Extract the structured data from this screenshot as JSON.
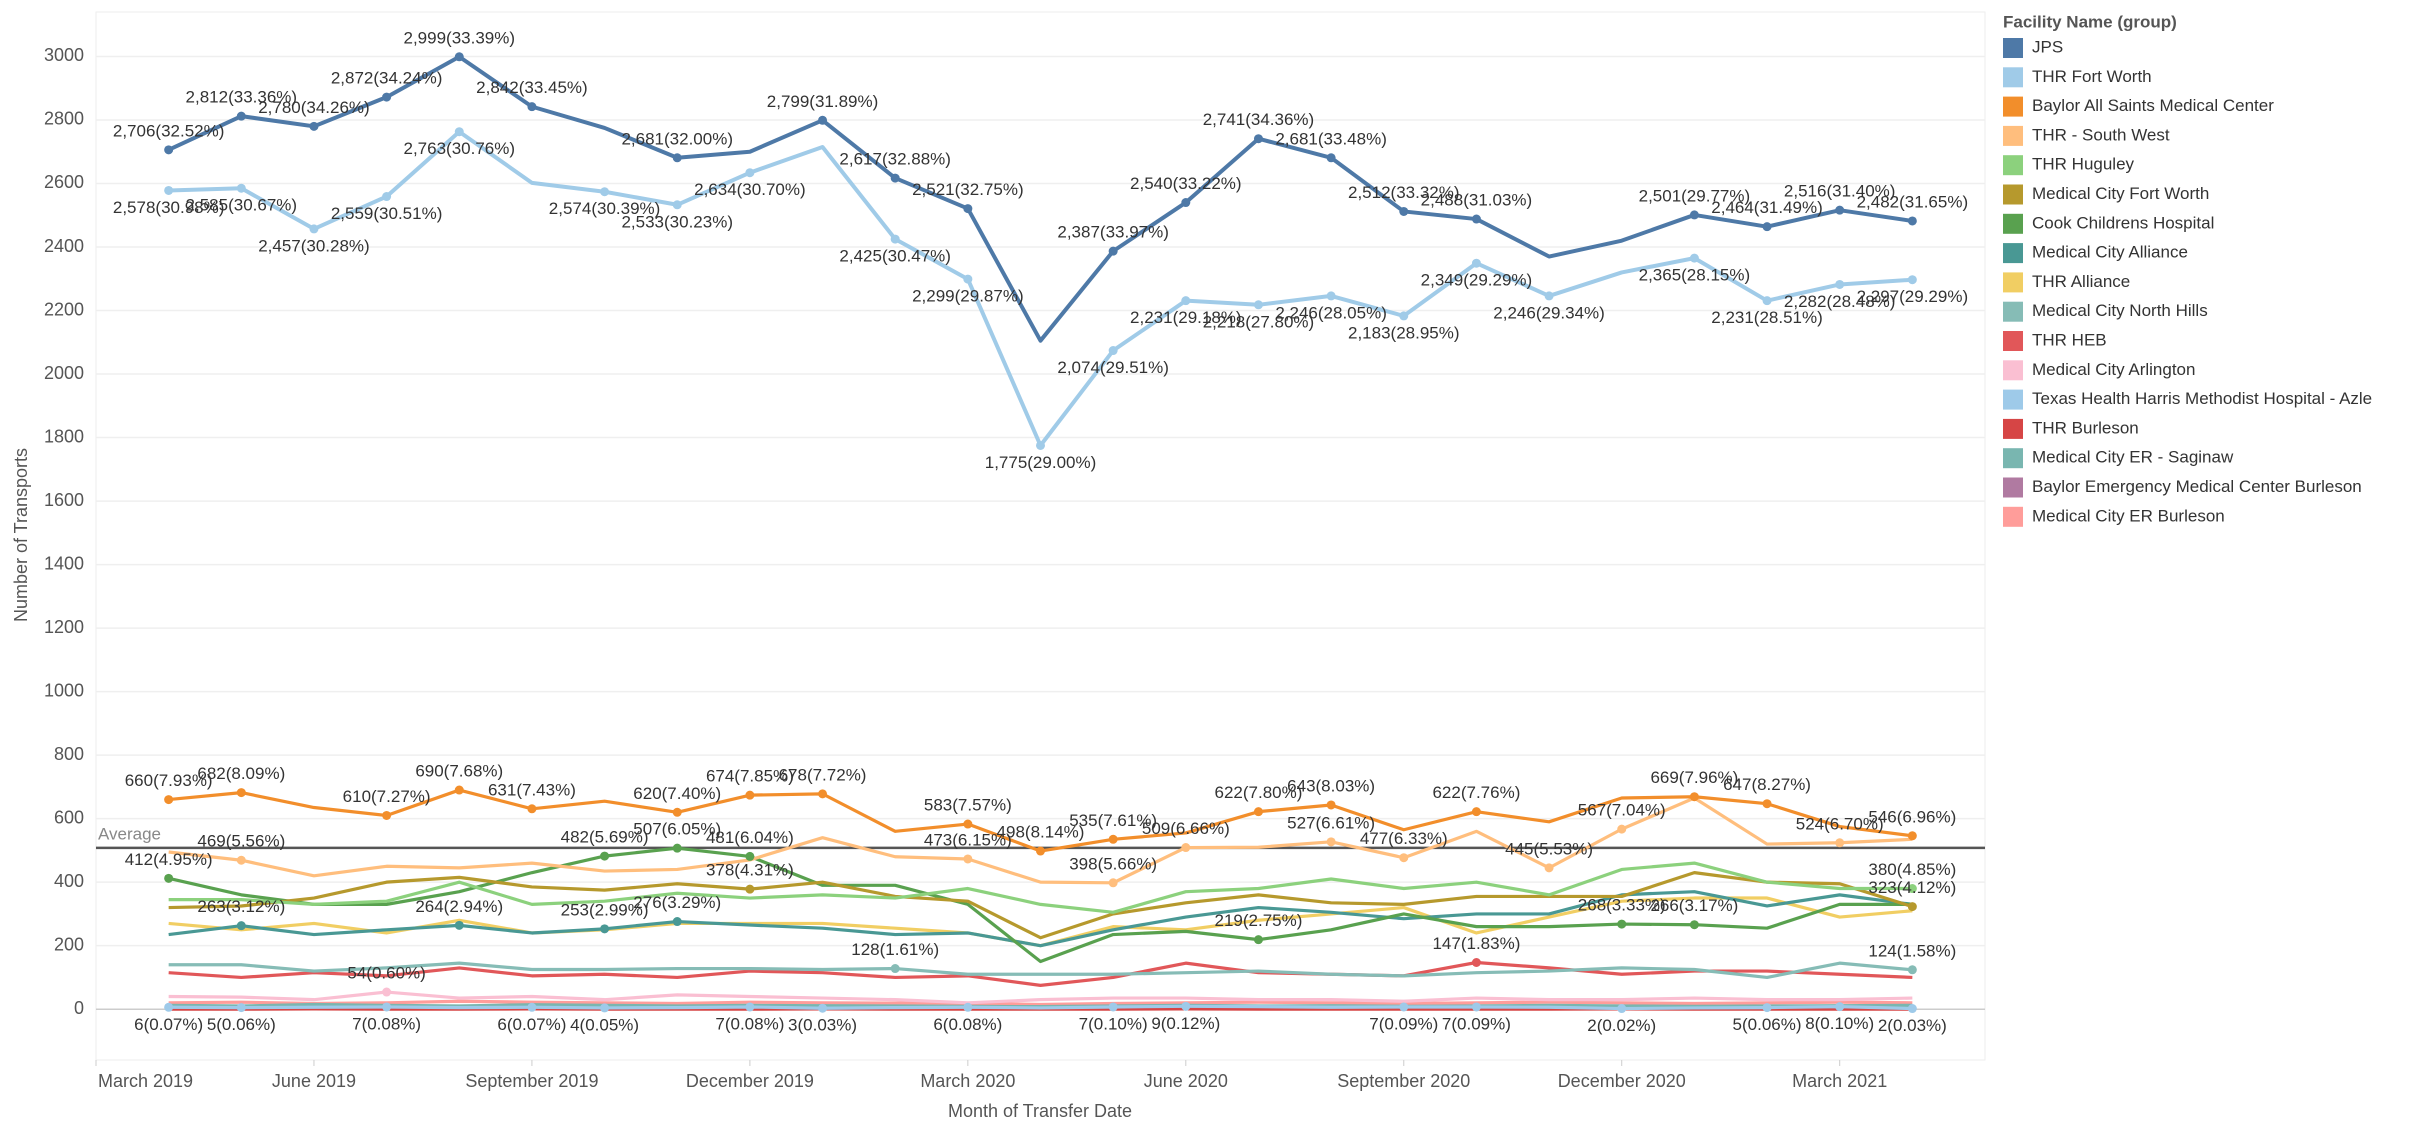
{
  "chart_data": {
    "type": "line",
    "x_label": "Month of Transfer Date",
    "y_label": "Number of Transports",
    "legend_title": "Facility Name (group)",
    "legend": "right",
    "grid": true,
    "x": [
      "2019-04",
      "2019-05",
      "2019-06",
      "2019-07",
      "2019-08",
      "2019-09",
      "2019-10",
      "2019-11",
      "2019-12",
      "2020-01",
      "2020-02",
      "2020-03",
      "2020-04",
      "2020-05",
      "2020-06",
      "2020-07",
      "2020-08",
      "2020-09",
      "2020-10",
      "2020-11",
      "2020-12",
      "2021-01",
      "2021-02",
      "2021-03",
      "2021-04"
    ],
    "xlim": [
      "2019-03",
      "2021-05"
    ],
    "xticks": [
      {
        "value": "2019-03",
        "label": "March 2019"
      },
      {
        "value": "2019-06",
        "label": "June 2019"
      },
      {
        "value": "2019-09",
        "label": "September 2019"
      },
      {
        "value": "2019-12",
        "label": "December 2019"
      },
      {
        "value": "2020-03",
        "label": "March 2020"
      },
      {
        "value": "2020-06",
        "label": "June 2020"
      },
      {
        "value": "2020-09",
        "label": "September 2020"
      },
      {
        "value": "2020-12",
        "label": "December 2020"
      },
      {
        "value": "2021-03",
        "label": "March 2021"
      }
    ],
    "ylim": [
      -160,
      3140
    ],
    "yticks": [
      0,
      200,
      400,
      600,
      800,
      1000,
      1200,
      1400,
      1600,
      1800,
      2000,
      2200,
      2400,
      2600,
      2800,
      3000
    ],
    "reference_line": {
      "label": "Average",
      "value": 508
    },
    "series": [
      {
        "name": "JPS",
        "color": "#4e79a7",
        "values": [
          2706,
          2812,
          2780,
          2872,
          2999,
          2842,
          2775,
          2681,
          2700,
          2799,
          2617,
          2521,
          2105,
          2387,
          2540,
          2741,
          2681,
          2512,
          2488,
          2370,
          2420,
          2501,
          2464,
          2516,
          2482
        ],
        "value_labels": [
          "2,706(32.52%)",
          "2,812(33.36%)",
          "2,780(34.26%)",
          "2,872(34.24%)",
          "2,999(33.39%)",
          "2,842(33.45%)",
          null,
          "2,681(32.00%)",
          null,
          "2,799(31.89%)",
          "2,617(32.88%)",
          "2,521(32.75%)",
          null,
          "2,387(33.97%)",
          "2,540(33.22%)",
          "2,741(34.36%)",
          "2,681(33.48%)",
          "2,512(33.32%)",
          "2,488(31.03%)",
          null,
          null,
          "2,501(29.77%)",
          "2,464(31.49%)",
          "2,516(31.40%)",
          "2,482(31.65%)"
        ]
      },
      {
        "name": "THR Fort Worth",
        "color": "#a0cbe8",
        "values": [
          2578,
          2585,
          2457,
          2559,
          2763,
          2602,
          2574,
          2533,
          2634,
          2715,
          2425,
          2299,
          1775,
          2074,
          2231,
          2218,
          2246,
          2183,
          2349,
          2246,
          2320,
          2365,
          2231,
          2282,
          2297
        ],
        "value_labels": [
          "2,578(30.98%)",
          "2,585(30.67%)",
          "2,457(30.28%)",
          "2,559(30.51%)",
          "2,763(30.76%)",
          null,
          "2,574(30.39%)",
          "2,533(30.23%)",
          "2,634(30.70%)",
          null,
          "2,425(30.47%)",
          "2,299(29.87%)",
          "1,775(29.00%)",
          "2,074(29.51%)",
          "2,231(29.18%)",
          "2,218(27.80%)",
          "2,246(28.05%)",
          "2,183(28.95%)",
          "2,349(29.29%)",
          "2,246(29.34%)",
          null,
          "2,365(28.15%)",
          "2,231(28.51%)",
          "2,282(28.48%)",
          "2,297(29.29%)"
        ]
      },
      {
        "name": "Baylor All Saints Medical Center",
        "color": "#f28e2b",
        "values": [
          660,
          682,
          635,
          610,
          690,
          631,
          655,
          620,
          674,
          678,
          560,
          583,
          498,
          535,
          555,
          622,
          643,
          565,
          622,
          590,
          665,
          669,
          647,
          575,
          546
        ],
        "value_labels": [
          "660(7.93%)",
          "682(8.09%)",
          null,
          "610(7.27%)",
          "690(7.68%)",
          "631(7.43%)",
          null,
          "620(7.40%)",
          "674(7.85%)",
          "678(7.72%)",
          null,
          "583(7.57%)",
          "498(8.14%)",
          "535(7.61%)",
          null,
          "622(7.80%)",
          "643(8.03%)",
          null,
          "622(7.76%)",
          null,
          null,
          "669(7.96%)",
          "647(8.27%)",
          null,
          "546(6.96%)"
        ]
      },
      {
        "name": "THR - South West",
        "color": "#ffbe7d",
        "values": [
          495,
          469,
          420,
          450,
          445,
          460,
          435,
          440,
          470,
          540,
          480,
          473,
          400,
          398,
          509,
          510,
          527,
          477,
          560,
          445,
          567,
          665,
          520,
          524,
          535
        ],
        "value_labels": [
          null,
          "469(5.56%)",
          null,
          null,
          null,
          null,
          null,
          null,
          null,
          null,
          null,
          "473(6.15%)",
          null,
          "398(5.66%)",
          "509(6.66%)",
          null,
          "527(6.61%)",
          "477(6.33%)",
          null,
          "445(5.53%)",
          "567(7.04%)",
          null,
          null,
          "524(6.70%)",
          null
        ]
      },
      {
        "name": "THR Huguley",
        "color": "#8cd17d",
        "values": [
          345,
          345,
          330,
          340,
          400,
          330,
          340,
          365,
          350,
          360,
          350,
          380,
          330,
          305,
          370,
          380,
          410,
          380,
          400,
          360,
          440,
          460,
          400,
          380,
          380
        ],
        "value_labels": [
          null,
          null,
          null,
          null,
          null,
          null,
          null,
          null,
          null,
          null,
          null,
          null,
          null,
          null,
          null,
          null,
          null,
          null,
          null,
          null,
          null,
          null,
          null,
          null,
          "380(4.85%)"
        ]
      },
      {
        "name": "Medical City Fort Worth",
        "color": "#b6992d",
        "values": [
          320,
          325,
          350,
          400,
          415,
          385,
          375,
          395,
          378,
          400,
          355,
          340,
          225,
          300,
          335,
          360,
          335,
          330,
          355,
          355,
          355,
          430,
          400,
          395,
          323
        ],
        "value_labels": [
          null,
          null,
          null,
          null,
          null,
          null,
          null,
          null,
          "378(4.31%)",
          null,
          null,
          null,
          null,
          null,
          null,
          null,
          null,
          null,
          null,
          null,
          null,
          null,
          null,
          null,
          "323(4.12%)"
        ]
      },
      {
        "name": "Cook Childrens Hospital",
        "color": "#59a14f",
        "values": [
          412,
          360,
          330,
          330,
          370,
          430,
          482,
          507,
          481,
          390,
          390,
          330,
          150,
          235,
          245,
          219,
          250,
          300,
          260,
          260,
          268,
          266,
          255,
          330,
          330
        ],
        "value_labels": [
          "412(4.95%)",
          null,
          null,
          null,
          null,
          null,
          "482(5.69%)",
          "507(6.05%)",
          "481(6.04%)",
          null,
          null,
          null,
          null,
          null,
          null,
          "219(2.75%)",
          null,
          null,
          null,
          null,
          "268(3.33%)",
          "266(3.17%)",
          null,
          null,
          null
        ]
      },
      {
        "name": "Medical City Alliance",
        "color": "#499894",
        "values": [
          235,
          263,
          235,
          250,
          264,
          240,
          253,
          276,
          265,
          255,
          235,
          240,
          200,
          250,
          290,
          320,
          305,
          285,
          300,
          300,
          360,
          370,
          325,
          360,
          330
        ],
        "value_labels": [
          null,
          "263(3.12%)",
          null,
          null,
          "264(2.94%)",
          null,
          "253(2.99%)",
          "276(3.29%)",
          null,
          null,
          null,
          null,
          null,
          null,
          null,
          null,
          null,
          null,
          null,
          null,
          null,
          null,
          null,
          null,
          null
        ]
      },
      {
        "name": "THR Alliance",
        "color": "#f1ce63",
        "values": [
          270,
          250,
          270,
          240,
          280,
          240,
          250,
          270,
          270,
          270,
          255,
          240,
          200,
          260,
          250,
          280,
          300,
          320,
          240,
          290,
          340,
          350,
          350,
          290,
          310
        ]
      },
      {
        "name": "Medical City North Hills",
        "color": "#86bcb6",
        "values": [
          140,
          140,
          120,
          130,
          145,
          125,
          125,
          128,
          128,
          125,
          128,
          110,
          110,
          110,
          115,
          120,
          110,
          105,
          115,
          120,
          130,
          125,
          100,
          145,
          124
        ],
        "value_labels": [
          null,
          null,
          null,
          null,
          null,
          null,
          null,
          null,
          null,
          null,
          "128(1.61%)",
          null,
          null,
          null,
          null,
          null,
          null,
          null,
          null,
          null,
          null,
          null,
          null,
          null,
          "124(1.58%)"
        ]
      },
      {
        "name": "THR HEB",
        "color": "#e15759",
        "values": [
          115,
          100,
          115,
          105,
          130,
          105,
          110,
          100,
          120,
          115,
          100,
          105,
          75,
          100,
          145,
          115,
          110,
          105,
          147,
          130,
          110,
          120,
          120,
          110,
          100
        ],
        "value_labels": [
          null,
          null,
          null,
          null,
          null,
          null,
          null,
          null,
          null,
          null,
          null,
          null,
          null,
          null,
          null,
          null,
          null,
          null,
          "147(1.83%)",
          null,
          null,
          null,
          null,
          null,
          null
        ]
      },
      {
        "name": "Medical City Arlington",
        "color": "#fabfd2",
        "values": [
          40,
          38,
          30,
          54,
          35,
          40,
          30,
          45,
          40,
          35,
          30,
          20,
          30,
          35,
          35,
          30,
          30,
          25,
          35,
          30,
          30,
          35,
          30,
          30,
          35
        ],
        "value_labels": [
          null,
          null,
          null,
          "54(0.60%)",
          null,
          null,
          null,
          null,
          null,
          null,
          null,
          null,
          null,
          null,
          null,
          null,
          null,
          null,
          null,
          null,
          null,
          null,
          null,
          null,
          null
        ]
      },
      {
        "name": "Texas Health Harris Methodist Hospital - Azle",
        "color": "#9ecae9",
        "values": [
          6,
          5,
          6,
          7,
          5,
          6,
          4,
          5,
          7,
          3,
          5,
          6,
          4,
          7,
          9,
          8,
          6,
          7,
          7,
          6,
          2,
          4,
          5,
          8,
          2
        ],
        "value_labels": [
          "6(0.07%)",
          "5(0.06%)",
          null,
          "7(0.08%)",
          null,
          "6(0.07%)",
          "4(0.05%)",
          null,
          "7(0.08%)",
          "3(0.03%)",
          null,
          "6(0.08%)",
          null,
          "7(0.10%)",
          "9(0.12%)",
          null,
          null,
          "7(0.09%)",
          "7(0.09%)",
          null,
          "2(0.02%)",
          null,
          "5(0.06%)",
          "8(0.10%)",
          "2(0.03%)"
        ]
      },
      {
        "name": "THR Burleson",
        "color": "#d64545",
        "values": [
          0,
          0,
          1,
          0,
          0,
          1,
          0,
          0,
          0,
          1,
          0,
          0,
          0,
          0,
          1,
          0,
          0,
          0,
          0,
          0,
          1,
          0,
          0,
          0,
          0
        ]
      },
      {
        "name": "Medical City ER - Saginaw",
        "color": "#79b6b0",
        "values": [
          12,
          10,
          15,
          12,
          10,
          14,
          12,
          10,
          12,
          11,
          10,
          9,
          8,
          10,
          12,
          10,
          11,
          9,
          10,
          12,
          10,
          9,
          10,
          11,
          12
        ]
      },
      {
        "name": "Baylor Emergency Medical Center Burleson",
        "color": "#b07aa1",
        "values": [
          2,
          1,
          2,
          3,
          2,
          1,
          2,
          2,
          1,
          2,
          2,
          1,
          1,
          2,
          2,
          1,
          2,
          2,
          1,
          2,
          1,
          2,
          2,
          1,
          2
        ]
      },
      {
        "name": "Medical City ER Burleson",
        "color": "#ff9d9a",
        "values": [
          20,
          22,
          18,
          20,
          25,
          22,
          20,
          18,
          22,
          20,
          19,
          18,
          15,
          18,
          20,
          22,
          20,
          18,
          20,
          22,
          20,
          18,
          20,
          22,
          20
        ]
      }
    ]
  }
}
